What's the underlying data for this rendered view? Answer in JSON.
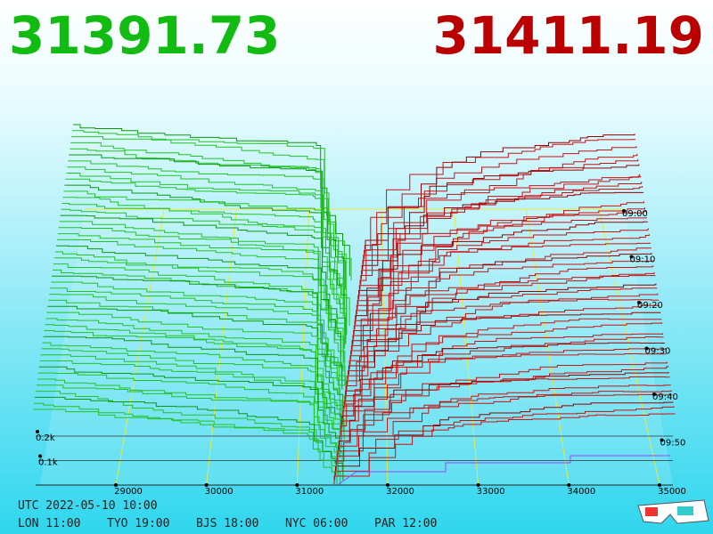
{
  "header": {
    "bid": "31391.73",
    "ask": "31411.19"
  },
  "axes": {
    "price_ticks": [
      29000,
      30000,
      31000,
      32000,
      33000,
      34000,
      35000
    ],
    "time_ticks": [
      "09:00",
      "09:10",
      "09:20",
      "09:30",
      "09:40",
      "09:50"
    ],
    "depth_ticks": [
      {
        "value": 200,
        "label": "0.2k"
      },
      {
        "value": 100,
        "label": "0.1k"
      }
    ]
  },
  "footer": {
    "utc": "UTC 2022-05-10 10:00",
    "zones": [
      "LON 11:00",
      "TYO 19:00",
      "BJS 18:00",
      "NYC 06:00",
      "PAR 12:00"
    ]
  }
}
